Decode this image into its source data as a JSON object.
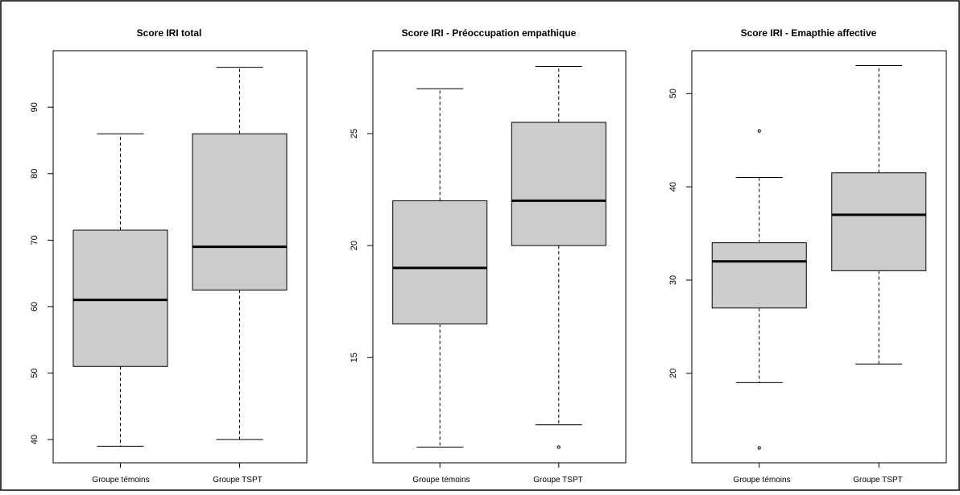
{
  "chart_data": [
    {
      "type": "box",
      "title": "Score IRI total",
      "xlabel": "",
      "ylabel": "",
      "ylim": [
        36.5,
        98.5
      ],
      "yticks": [
        40,
        50,
        60,
        70,
        80,
        90
      ],
      "categories": [
        "Groupe témoins",
        "Groupe TSPT"
      ],
      "boxes": [
        {
          "whisker_low": 39,
          "q1": 51,
          "median": 61,
          "q3": 71.5,
          "whisker_high": 86,
          "outliers": []
        },
        {
          "whisker_low": 40,
          "q1": 62.5,
          "median": 69,
          "q3": 86,
          "whisker_high": 96,
          "outliers": []
        }
      ]
    },
    {
      "type": "box",
      "title": "Score IRI - Préoccupation empathique",
      "xlabel": "",
      "ylabel": "",
      "ylim": [
        10.3,
        28.7
      ],
      "yticks": [
        15,
        20,
        25
      ],
      "categories": [
        "Groupe témoins",
        "Groupe TSPT"
      ],
      "boxes": [
        {
          "whisker_low": 11,
          "q1": 16.5,
          "median": 19,
          "q3": 22,
          "whisker_high": 27,
          "outliers": []
        },
        {
          "whisker_low": 12,
          "q1": 20,
          "median": 22,
          "q3": 25.5,
          "whisker_high": 28,
          "outliers": [
            11
          ]
        }
      ]
    },
    {
      "type": "box",
      "title": "Score IRI - Emapthie affective",
      "xlabel": "",
      "ylabel": "",
      "ylim": [
        10.4,
        54.6
      ],
      "yticks": [
        20,
        30,
        40,
        50
      ],
      "categories": [
        "Groupe témoins",
        "Groupe TSPT"
      ],
      "boxes": [
        {
          "whisker_low": 19,
          "q1": 27,
          "median": 32,
          "q3": 34,
          "whisker_high": 41,
          "outliers": [
            12,
            46
          ]
        },
        {
          "whisker_low": 21,
          "q1": 31,
          "median": 37,
          "q3": 41.5,
          "whisker_high": 53,
          "outliers": []
        }
      ]
    }
  ],
  "colors": {
    "box_fill": "#cccccc",
    "stroke": "#000000",
    "background": "#ffffff"
  }
}
